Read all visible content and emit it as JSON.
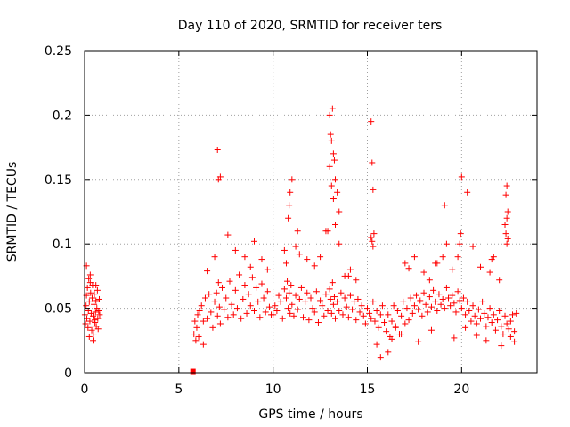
{
  "chart_data": {
    "type": "scatter",
    "title": "Day 110 of 2020, SRMTID for receiver ters",
    "xlabel": "GPS time / hours",
    "ylabel": "SRMTID / TECUs",
    "xlim": [
      0,
      24
    ],
    "ylim": [
      0,
      0.25
    ],
    "xticks": [
      0,
      5,
      10,
      15,
      20
    ],
    "xtick_labels": [
      "0",
      "5",
      "10",
      "15",
      "20"
    ],
    "yticks": [
      0,
      0.05,
      0.1,
      0.15,
      0.2,
      0.25
    ],
    "ytick_labels": [
      "0",
      "0.05",
      "0.1",
      "0.15",
      "0.2",
      "0.25"
    ],
    "grid": true,
    "marker": "plus",
    "color": "#ff0000",
    "series": [
      {
        "name": "SRMTID",
        "x": [
          0.02,
          0.05,
          0.08,
          0.1,
          0.12,
          0.15,
          0.18,
          0.2,
          0.22,
          0.25,
          0.28,
          0.3,
          0.32,
          0.35,
          0.38,
          0.4,
          0.42,
          0.45,
          0.48,
          0.5,
          0.52,
          0.55,
          0.58,
          0.6,
          0.62,
          0.65,
          0.68,
          0.7,
          0.72,
          0.75,
          0.78,
          0.8,
          0.1,
          0.3,
          0.45,
          0.6,
          0.25,
          0.55,
          5.8,
          5.85,
          5.9,
          5.95,
          6.0,
          6.05,
          6.1,
          6.2,
          6.3,
          6.4,
          6.5,
          6.6,
          6.7,
          6.8,
          6.9,
          7.0,
          7.05,
          7.1,
          7.15,
          7.2,
          7.3,
          7.4,
          7.5,
          7.6,
          7.7,
          7.8,
          7.9,
          8.0,
          8.1,
          8.2,
          8.3,
          8.4,
          8.5,
          8.6,
          8.7,
          8.8,
          8.9,
          9.0,
          9.1,
          9.2,
          9.3,
          9.4,
          9.5,
          9.6,
          9.7,
          9.8,
          9.9,
          6.3,
          6.5,
          6.9,
          7.05,
          7.1,
          7.2,
          7.6,
          8.0,
          8.5,
          8.8,
          9.0,
          9.4,
          9.7,
          10.0,
          10.1,
          10.2,
          10.3,
          10.4,
          10.5,
          10.6,
          10.7,
          10.75,
          10.8,
          10.85,
          10.9,
          10.95,
          11.0,
          11.1,
          11.2,
          11.3,
          11.4,
          11.5,
          11.6,
          11.7,
          11.8,
          11.9,
          12.0,
          12.1,
          12.2,
          12.3,
          12.4,
          12.5,
          12.6,
          12.7,
          12.8,
          12.9,
          13.0,
          13.05,
          13.1,
          13.15,
          13.2,
          13.25,
          13.3,
          13.4,
          13.5,
          13.6,
          13.7,
          13.8,
          13.9,
          14.0,
          14.1,
          14.2,
          14.3,
          14.4,
          14.5,
          14.6,
          14.7,
          14.8,
          14.9,
          15.0,
          15.1,
          15.2,
          15.3,
          15.4,
          15.5,
          15.6,
          15.7,
          15.8,
          15.9,
          10.8,
          10.85,
          10.9,
          11.0,
          11.3,
          12.5,
          12.8,
          13.0,
          13.05,
          13.1,
          13.15,
          13.2,
          13.25,
          13.3,
          13.4,
          13.5,
          13.0,
          13.1,
          13.2,
          12.9,
          13.3,
          13.5,
          15.2,
          15.25,
          15.3,
          15.35,
          15.2,
          15.25,
          15.3,
          14.1,
          14.0,
          10.6,
          10.7,
          11.2,
          11.4,
          11.8,
          12.2,
          13.8,
          14.4,
          16.0,
          16.1,
          16.2,
          16.3,
          16.4,
          16.5,
          16.6,
          16.7,
          16.8,
          16.9,
          17.0,
          17.1,
          17.2,
          17.3,
          17.4,
          17.5,
          17.6,
          17.7,
          17.8,
          17.9,
          18.0,
          18.1,
          18.2,
          18.3,
          18.4,
          18.5,
          18.6,
          18.7,
          18.8,
          18.9,
          19.0,
          19.1,
          19.2,
          19.3,
          19.4,
          19.5,
          19.6,
          19.7,
          19.8,
          19.9,
          20.0,
          20.1,
          20.2,
          20.3,
          20.4,
          20.5,
          20.6,
          20.7,
          20.8,
          20.9,
          21.0,
          21.1,
          21.2,
          21.3,
          21.4,
          21.5,
          21.6,
          21.7,
          21.8,
          21.9,
          22.0,
          22.1,
          22.2,
          22.3,
          22.4,
          22.5,
          22.6,
          22.7,
          22.8,
          22.9,
          16.1,
          16.5,
          17.0,
          17.5,
          18.0,
          18.3,
          18.7,
          19.0,
          19.2,
          19.5,
          19.8,
          19.9,
          19.95,
          20.0,
          20.3,
          20.6,
          21.0,
          21.5,
          21.7,
          22.0,
          22.3,
          22.35,
          22.4,
          22.45,
          22.4,
          22.35,
          22.45,
          22.4,
          21.6,
          19.1,
          18.6,
          17.2,
          15.5,
          15.7,
          16.3,
          16.8,
          17.7,
          18.4,
          19.6,
          20.2,
          20.8,
          21.3,
          22.1,
          22.6,
          22.8
        ],
        "y": [
          0.045,
          0.038,
          0.052,
          0.06,
          0.042,
          0.066,
          0.035,
          0.048,
          0.073,
          0.055,
          0.04,
          0.07,
          0.062,
          0.046,
          0.033,
          0.058,
          0.068,
          0.044,
          0.03,
          0.053,
          0.061,
          0.039,
          0.047,
          0.056,
          0.036,
          0.05,
          0.064,
          0.042,
          0.034,
          0.048,
          0.057,
          0.045,
          0.083,
          0.076,
          0.025,
          0.068,
          0.028,
          0.041,
          0.03,
          0.04,
          0.025,
          0.035,
          0.045,
          0.028,
          0.048,
          0.052,
          0.04,
          0.058,
          0.042,
          0.061,
          0.047,
          0.035,
          0.055,
          0.062,
          0.044,
          0.07,
          0.051,
          0.038,
          0.066,
          0.049,
          0.058,
          0.043,
          0.071,
          0.053,
          0.045,
          0.064,
          0.05,
          0.076,
          0.042,
          0.057,
          0.068,
          0.046,
          0.061,
          0.052,
          0.074,
          0.048,
          0.066,
          0.055,
          0.043,
          0.069,
          0.058,
          0.047,
          0.063,
          0.051,
          0.045,
          0.022,
          0.079,
          0.09,
          0.173,
          0.15,
          0.152,
          0.107,
          0.095,
          0.09,
          0.082,
          0.102,
          0.088,
          0.08,
          0.045,
          0.052,
          0.048,
          0.06,
          0.055,
          0.042,
          0.065,
          0.058,
          0.071,
          0.05,
          0.062,
          0.046,
          0.068,
          0.053,
          0.044,
          0.06,
          0.049,
          0.057,
          0.066,
          0.043,
          0.055,
          0.062,
          0.041,
          0.058,
          0.05,
          0.047,
          0.063,
          0.039,
          0.056,
          0.052,
          0.044,
          0.061,
          0.048,
          0.065,
          0.057,
          0.046,
          0.07,
          0.053,
          0.059,
          0.042,
          0.055,
          0.048,
          0.062,
          0.045,
          0.058,
          0.051,
          0.043,
          0.06,
          0.049,
          0.055,
          0.041,
          0.057,
          0.047,
          0.052,
          0.044,
          0.038,
          0.05,
          0.046,
          0.042,
          0.055,
          0.04,
          0.048,
          0.035,
          0.045,
          0.052,
          0.039,
          0.12,
          0.13,
          0.14,
          0.15,
          0.11,
          0.09,
          0.11,
          0.2,
          0.185,
          0.18,
          0.205,
          0.17,
          0.165,
          0.15,
          0.14,
          0.125,
          0.16,
          0.145,
          0.135,
          0.11,
          0.115,
          0.1,
          0.195,
          0.163,
          0.142,
          0.108,
          0.105,
          0.102,
          0.098,
          0.08,
          0.075,
          0.095,
          0.085,
          0.098,
          0.092,
          0.088,
          0.083,
          0.075,
          0.072,
          0.032,
          0.045,
          0.028,
          0.04,
          0.052,
          0.036,
          0.048,
          0.03,
          0.044,
          0.055,
          0.038,
          0.05,
          0.041,
          0.058,
          0.046,
          0.052,
          0.06,
          0.049,
          0.056,
          0.044,
          0.062,
          0.053,
          0.047,
          0.059,
          0.051,
          0.064,
          0.055,
          0.048,
          0.061,
          0.053,
          0.057,
          0.05,
          0.066,
          0.058,
          0.052,
          0.06,
          0.054,
          0.047,
          0.063,
          0.056,
          0.05,
          0.058,
          0.045,
          0.055,
          0.048,
          0.04,
          0.052,
          0.044,
          0.038,
          0.049,
          0.042,
          0.055,
          0.046,
          0.036,
          0.043,
          0.05,
          0.039,
          0.045,
          0.033,
          0.041,
          0.048,
          0.036,
          0.03,
          0.044,
          0.038,
          0.034,
          0.04,
          0.045,
          0.032,
          0.046,
          0.016,
          0.035,
          0.085,
          0.09,
          0.078,
          0.072,
          0.085,
          0.09,
          0.1,
          0.08,
          0.09,
          0.1,
          0.108,
          0.152,
          0.14,
          0.098,
          0.082,
          0.078,
          0.09,
          0.072,
          0.115,
          0.138,
          0.145,
          0.125,
          0.12,
          0.108,
          0.104,
          0.1,
          0.088,
          0.13,
          0.085,
          0.081,
          0.022,
          0.012,
          0.026,
          0.03,
          0.024,
          0.033,
          0.027,
          0.035,
          0.029,
          0.025,
          0.021,
          0.028,
          0.024
        ]
      }
    ],
    "outlier": {
      "x": 5.75,
      "y": 0.001
    }
  }
}
